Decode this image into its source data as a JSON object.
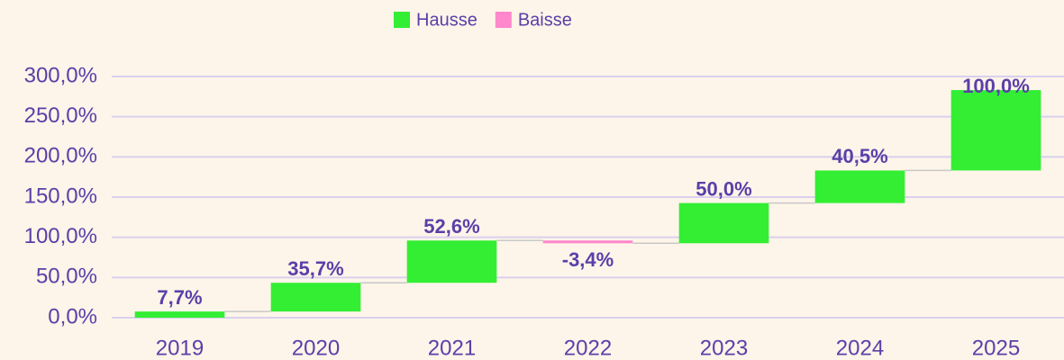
{
  "chart_data": {
    "type": "waterfall",
    "legend": [
      {
        "name": "Hausse",
        "color": "#33ee33"
      },
      {
        "name": "Baisse",
        "color": "#ff88cc"
      }
    ],
    "categories": [
      "2019",
      "2020",
      "2021",
      "2022",
      "2023",
      "2024",
      "2025"
    ],
    "values": [
      7.7,
      35.7,
      52.6,
      -3.4,
      50.0,
      40.5,
      100.0
    ],
    "value_labels": [
      "7,7%",
      "35,7%",
      "52,6%",
      "-3,4%",
      "50,0%",
      "40,5%",
      "100,0%"
    ],
    "ylim": [
      0,
      300
    ],
    "yticks": [
      {
        "value": 0,
        "label": "0,0%"
      },
      {
        "value": 50,
        "label": "50,0%"
      },
      {
        "value": 100,
        "label": "100,0%"
      },
      {
        "value": 150,
        "label": "150,0%"
      },
      {
        "value": 200,
        "label": "200,0%"
      },
      {
        "value": 250,
        "label": "250,0%"
      },
      {
        "value": 300,
        "label": "300,0%"
      }
    ],
    "grid": true
  }
}
